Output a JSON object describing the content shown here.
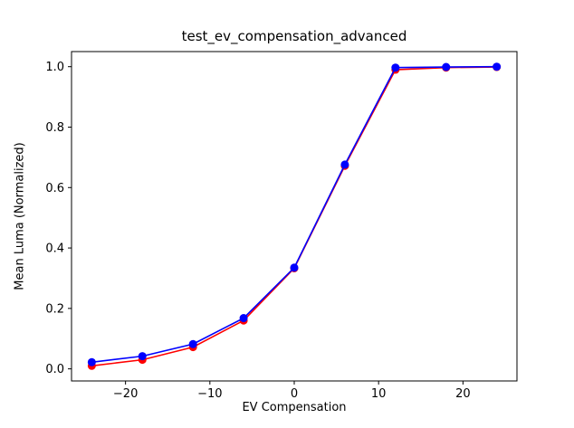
{
  "chart_data": {
    "type": "line",
    "title": "test_ev_compensation_advanced",
    "xlabel": "EV Compensation",
    "ylabel": "Mean Luma (Normalized)",
    "x": [
      -24,
      -18,
      -12,
      -6,
      0,
      6,
      12,
      18,
      24
    ],
    "series": [
      {
        "name": "red-series",
        "color": "#ff0000",
        "values": [
          0.01,
          0.03,
          0.072,
          0.16,
          0.333,
          0.672,
          0.99,
          0.997,
          0.999
        ]
      },
      {
        "name": "blue-series",
        "color": "#0000ff",
        "values": [
          0.022,
          0.042,
          0.082,
          0.168,
          0.335,
          0.676,
          0.997,
          0.999,
          1.0
        ]
      }
    ],
    "xticks": [
      -20,
      -10,
      0,
      10,
      20
    ],
    "yticks": [
      0.0,
      0.2,
      0.4,
      0.6,
      0.8,
      1.0
    ],
    "xlim": [
      -26.4,
      26.4
    ],
    "ylim": [
      -0.04,
      1.05
    ],
    "grid": false,
    "legend_position": "none",
    "marker": "circle",
    "marker_radius": 4.5
  }
}
